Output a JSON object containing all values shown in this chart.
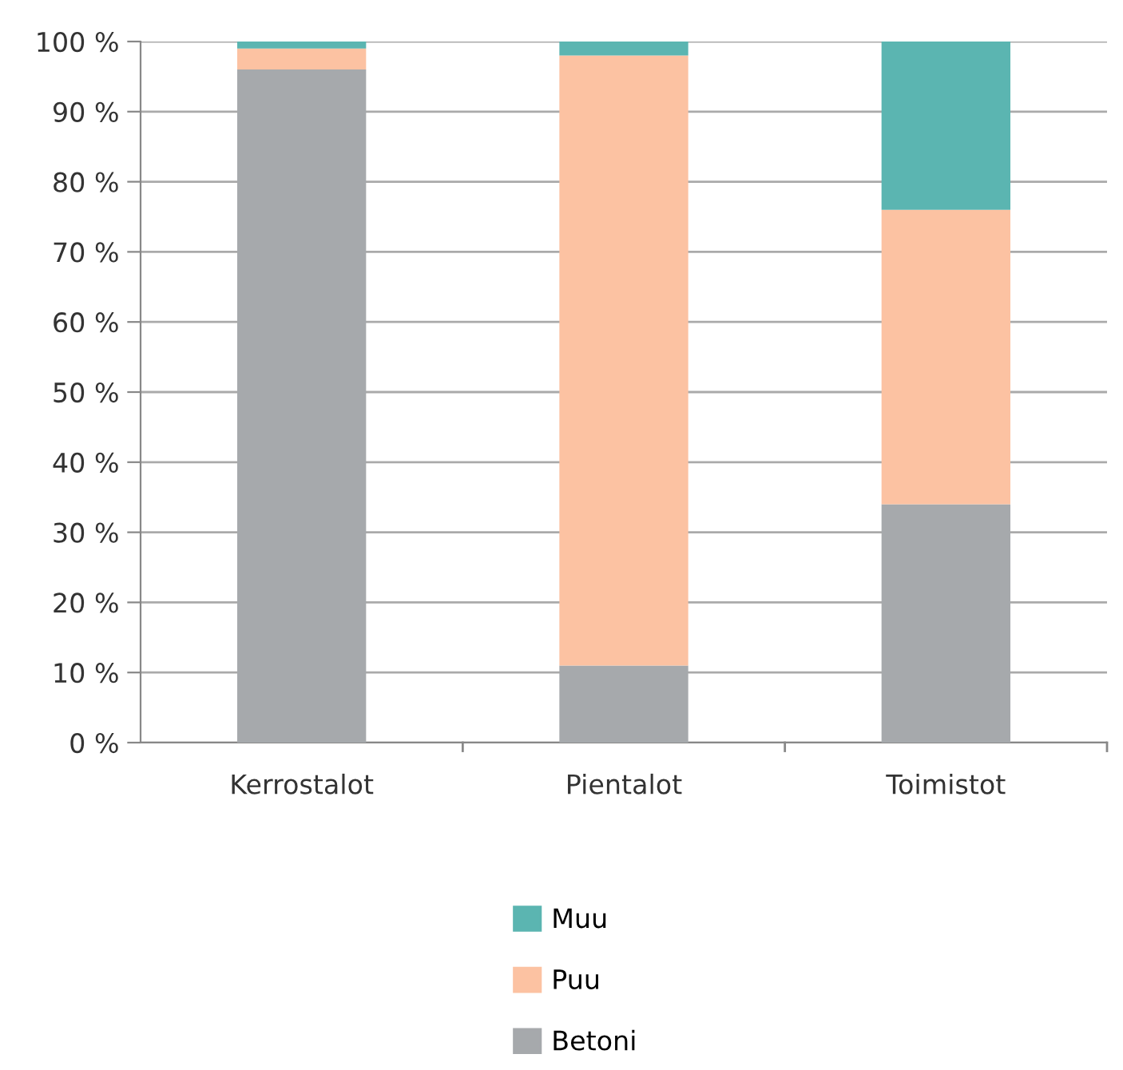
{
  "chart_data": {
    "type": "bar",
    "stacked": true,
    "categories": [
      "Kerrostalot",
      "Pientalot",
      "Toimistot"
    ],
    "series": [
      {
        "name": "Betoni",
        "color": "#a6a9ac",
        "values": [
          96,
          11,
          34
        ]
      },
      {
        "name": "Puu",
        "color": "#fcc2a2",
        "values": [
          3,
          87,
          42
        ]
      },
      {
        "name": "Muu",
        "color": "#5bb5b1",
        "values": [
          1,
          2,
          24
        ]
      }
    ],
    "ylim": [
      0,
      100
    ],
    "yticks": [
      {
        "value": 0,
        "label": "0 %"
      },
      {
        "value": 10,
        "label": "10 %"
      },
      {
        "value": 20,
        "label": "20 %"
      },
      {
        "value": 30,
        "label": "30 %"
      },
      {
        "value": 40,
        "label": "40 %"
      },
      {
        "value": 50,
        "label": "50 %"
      },
      {
        "value": 60,
        "label": "60 %"
      },
      {
        "value": 70,
        "label": "70 %"
      },
      {
        "value": 80,
        "label": "80 %"
      },
      {
        "value": 90,
        "label": "90 %"
      },
      {
        "value": 100,
        "label": "100 %"
      }
    ],
    "grid": "y",
    "legend": "bottom"
  }
}
